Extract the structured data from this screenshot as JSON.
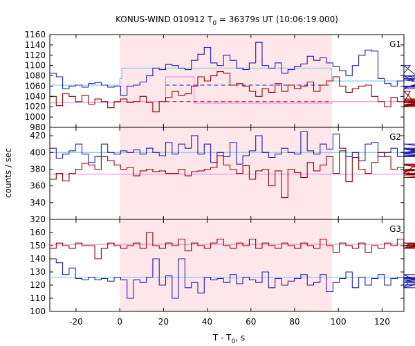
{
  "chart_data": {
    "type": "line",
    "title": "KONUS-WIND 010912 T",
    "title_sub": "0",
    "title_rest": " = 36379s UT (10:06:19.000)",
    "xlabel": "T - T",
    "xlabel_sub": "0",
    "xlabel_rest": ", s",
    "ylabel": "counts / sec",
    "xlim": [
      -32,
      130
    ],
    "xticks": [
      -20,
      0,
      20,
      40,
      60,
      80,
      100,
      120
    ],
    "shaded_region": [
      0,
      97
    ],
    "colors": {
      "blue": "#1f1fb0",
      "red": "#8b0000",
      "cyan": "#64c8e6",
      "pink": "#e87ae0",
      "shade": "#ffe6ea"
    },
    "panels": [
      {
        "name": "G1",
        "ylim": [
          980,
          1160
        ],
        "yticks": [
          980,
          1000,
          1020,
          1040,
          1060,
          1080,
          1100,
          1120,
          1140,
          1160
        ],
        "bin_start": -32,
        "bin_width": 2.944,
        "series": [
          {
            "color": "blue",
            "values": [
              1085,
              1078,
              1055,
              1060,
              1062,
              1058,
              1065,
              1067,
              1062,
              1058,
              1060,
              1042,
              1060,
              1062,
              1068,
              1080,
              1095,
              1092,
              1102,
              1100,
              1095,
              1092,
              1110,
              1122,
              1135,
              1105,
              1100,
              1120,
              1110,
              1095,
              1092,
              1105,
              1145,
              1100,
              1095,
              1105,
              1085,
              1092,
              1098,
              1103,
              1118,
              1110,
              1115,
              1105,
              1098,
              1090,
              1080,
              1100,
              1120,
              1130,
              1128,
              1075,
              1065,
              1060,
              1070,
              1085,
              1100,
              1080,
              1060,
              1055,
              1080,
              1072,
              1060,
              1058,
              1075,
              1060,
              1060
            ]
          },
          {
            "color": "red",
            "values": [
              1040,
              1022,
              1045,
              1040,
              1030,
              1042,
              1025,
              1035,
              1030,
              1018,
              1030,
              1035,
              1028,
              1030,
              1040,
              1028,
              1010,
              1030,
              1038,
              1050,
              1042,
              1045,
              1060,
              1078,
              1070,
              1080,
              1088,
              1085,
              1062,
              1065,
              1060,
              1050,
              1040,
              1055,
              1048,
              1065,
              1050,
              1062,
              1055,
              1060,
              1068,
              1050,
              1062,
              1070,
              1078,
              1060,
              1048,
              1055,
              1060,
              1062,
              1040,
              1030,
              1020,
              1038,
              1030,
              1028,
              1050,
              1025,
              1020,
              1030,
              1028,
              1022,
              1032,
              1028,
              1030,
              1035,
              1030
            ]
          }
        ],
        "segments": [
          {
            "color": "cyan",
            "dash": false,
            "points": [
              [
                -32,
                1062
              ],
              [
                0,
                1062
              ],
              [
                0,
                1075
              ],
              [
                1,
                1075
              ],
              [
                1,
                1095
              ],
              [
                97,
                1095
              ],
              [
                97,
                1070
              ],
              [
                130,
                1070
              ]
            ]
          },
          {
            "color": "pink",
            "dash": false,
            "points": [
              [
                -32,
                1028
              ],
              [
                0,
                1028
              ],
              [
                0,
                1030
              ],
              [
                21,
                1030
              ],
              [
                21,
                1078
              ],
              [
                34,
                1078
              ],
              [
                34,
                1027
              ],
              [
                97,
                1027
              ],
              [
                97,
                1030
              ],
              [
                130,
                1030
              ]
            ]
          },
          {
            "color": "blue",
            "dash": true,
            "points": [
              [
                21,
                1062
              ],
              [
                97,
                1062
              ]
            ]
          },
          {
            "color": "red",
            "dash": true,
            "points": [
              [
                21,
                1030
              ],
              [
                97,
                1030
              ]
            ]
          }
        ]
      },
      {
        "name": "G2",
        "ylim": [
          320,
          430
        ],
        "yticks": [
          320,
          340,
          360,
          380,
          400,
          420
        ],
        "bin_start": -32,
        "bin_width": 2.944,
        "series": [
          {
            "color": "blue",
            "values": [
              405,
              393,
              398,
              402,
              410,
              398,
              388,
              395,
              410,
              400,
              398,
              402,
              400,
              403,
              398,
              405,
              400,
              396,
              412,
              398,
              410,
              405,
              420,
              398,
              410,
              388,
              400,
              395,
              412,
              386,
              396,
              402,
              420,
              400,
              394,
              398,
              405,
              400,
              398,
              425,
              402,
              398,
              410,
              404,
              422,
              405,
              395,
              400,
              390,
              410,
              412,
              395,
              400,
              405,
              395,
              400,
              398,
              404,
              400,
              395,
              398,
              405,
              396,
              400,
              410,
              400,
              405
            ]
          },
          {
            "color": "red",
            "values": [
              368,
              375,
              366,
              375,
              380,
              387,
              385,
              380,
              395,
              390,
              385,
              380,
              382,
              372,
              378,
              380,
              377,
              378,
              375,
              375,
              380,
              372,
              377,
              378,
              380,
              382,
              396,
              385,
              380,
              375,
              384,
              368,
              378,
              380,
              360,
              378,
              346,
              380,
              376,
              370,
              388,
              378,
              385,
              395,
              375,
              402,
              365,
              394,
              380,
              375,
              388,
              400,
              395,
              380,
              382,
              378,
              375,
              386,
              380,
              375,
              370,
              373,
              378,
              385,
              375,
              373,
              380
            ]
          }
        ],
        "segments": [
          {
            "color": "cyan",
            "dash": false,
            "points": [
              [
                -32,
                400
              ],
              [
                130,
                400
              ]
            ]
          },
          {
            "color": "pink",
            "dash": false,
            "points": [
              [
                -32,
                374
              ],
              [
                130,
                374
              ]
            ]
          }
        ]
      },
      {
        "name": "G3",
        "ylim": [
          100,
          170
        ],
        "yticks": [
          100,
          110,
          120,
          130,
          140,
          150,
          160
        ],
        "bin_start": -32,
        "bin_width": 2.944,
        "series": [
          {
            "color": "blue",
            "values": [
              140,
              137,
              128,
              133,
              125,
              124,
              126,
              124,
              125,
              123,
              126,
              124,
              110,
              124,
              122,
              126,
              140,
              120,
              127,
              110,
              140,
              118,
              122,
              114,
              126,
              124,
              125,
              122,
              128,
              121,
              126,
              124,
              122,
              130,
              118,
              125,
              120,
              123,
              125,
              128,
              120,
              122,
              128,
              115,
              122,
              125,
              130,
              118,
              126,
              120,
              125,
              128,
              120,
              125,
              126,
              118,
              124,
              122,
              128,
              118,
              125,
              126,
              120,
              125,
              124,
              122,
              126
            ]
          },
          {
            "color": "red",
            "values": [
              148,
              152,
              150,
              148,
              152,
              150,
              150,
              140,
              148,
              152,
              150,
              148,
              150,
              152,
              148,
              160,
              150,
              148,
              152,
              150,
              155,
              146,
              152,
              150,
              148,
              152,
              155,
              150,
              148,
              152,
              150,
              155,
              148,
              152,
              150,
              148,
              152,
              150,
              148,
              152,
              150,
              148,
              155,
              150,
              145,
              152,
              150,
              148,
              152,
              145,
              150,
              148,
              152,
              150,
              155,
              148,
              150,
              152,
              150,
              148,
              152,
              150,
              148,
              150,
              152,
              150,
              150
            ]
          }
        ],
        "segments": [
          {
            "color": "pink",
            "dash": false,
            "points": [
              [
                -32,
                151
              ],
              [
                130,
                151
              ]
            ]
          },
          {
            "color": "cyan",
            "dash": false,
            "points": [
              [
                -32,
                126
              ],
              [
                130,
                126
              ]
            ]
          }
        ]
      }
    ]
  }
}
